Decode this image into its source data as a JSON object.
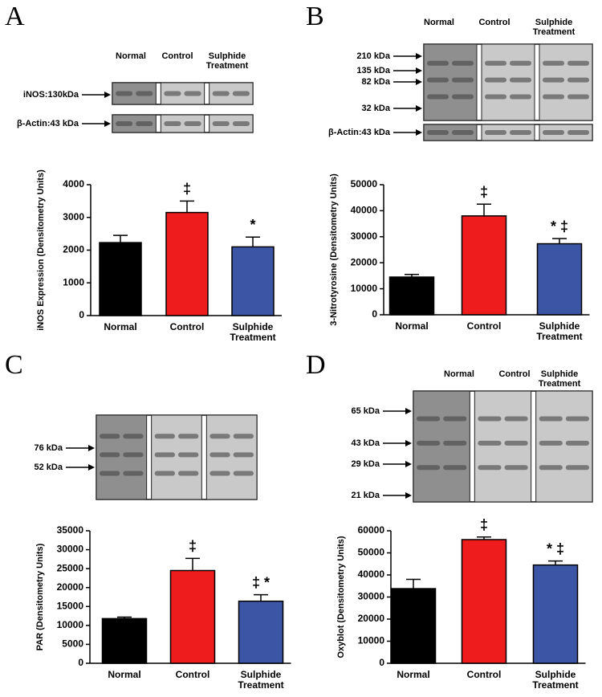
{
  "chart_data": [
    {
      "type": "bar",
      "panel": "A",
      "lanes": [
        "Normal",
        "Control",
        "Sulphide Treatment"
      ],
      "blot_labels": [
        "iNOS:130kDa",
        "β-Actin:43 kDa"
      ],
      "y_label": "iNOS Expression (Densitometry Units)",
      "categories": [
        "Normal",
        "Control",
        "Sulphide Treatment"
      ],
      "values": [
        2230,
        3150,
        2100
      ],
      "errors": [
        220,
        350,
        300
      ],
      "annotations": [
        null,
        "‡",
        "*"
      ],
      "colors": [
        "#000000",
        "#ee1c1c",
        "#3d55a5"
      ],
      "ylim": [
        0,
        4000
      ],
      "yticks": [
        0,
        1000,
        2000,
        3000,
        4000
      ]
    },
    {
      "type": "bar",
      "panel": "B",
      "lanes": [
        "Normal",
        "Control",
        "Sulphide Treatment"
      ],
      "blot_labels": [
        "210 kDa",
        "135 kDa",
        "82 kDa",
        "32 kDa",
        "β-Actin:43 kDa"
      ],
      "y_label": "3-Nitrotyrosine (Densitometry Units)",
      "categories": [
        "Normal",
        "Control",
        "Sulphide Treatment"
      ],
      "values": [
        14500,
        38000,
        27300
      ],
      "errors": [
        1000,
        4500,
        2000
      ],
      "annotations": [
        null,
        "‡",
        "* ‡"
      ],
      "colors": [
        "#000000",
        "#ee1c1c",
        "#3d55a5"
      ],
      "ylim": [
        0,
        50000
      ],
      "yticks": [
        0,
        10000,
        20000,
        30000,
        40000,
        50000
      ]
    },
    {
      "type": "bar",
      "panel": "C",
      "lanes": [],
      "blot_labels": [
        "76 kDa",
        "52 kDa"
      ],
      "y_label": "PAR (Densitometry Units)",
      "categories": [
        "Normal",
        "Control",
        "Sulphide Treatment"
      ],
      "values": [
        11800,
        24500,
        16400
      ],
      "errors": [
        400,
        3200,
        1700
      ],
      "annotations": [
        null,
        "‡",
        "‡ *"
      ],
      "colors": [
        "#000000",
        "#ee1c1c",
        "#3d55a5"
      ],
      "ylim": [
        0,
        35000
      ],
      "yticks": [
        0,
        5000,
        10000,
        15000,
        20000,
        25000,
        30000,
        35000
      ]
    },
    {
      "type": "bar",
      "panel": "D",
      "lanes": [
        "Normal",
        "Control",
        "Sulphide Treatment"
      ],
      "blot_labels": [
        "65 kDa",
        "43 kDa",
        "29 kDa",
        "21 kDa"
      ],
      "y_label": "Oxyblot (Densitometry Units)",
      "categories": [
        "Normal",
        "Control",
        "Sulphide Treatment"
      ],
      "values": [
        33800,
        56000,
        44500
      ],
      "errors": [
        4200,
        1200,
        1800
      ],
      "annotations": [
        null,
        "‡",
        "* ‡"
      ],
      "colors": [
        "#000000",
        "#ee1c1c",
        "#3d55a5"
      ],
      "ylim": [
        0,
        60000
      ],
      "yticks": [
        0,
        10000,
        20000,
        30000,
        40000,
        50000,
        60000
      ]
    }
  ]
}
